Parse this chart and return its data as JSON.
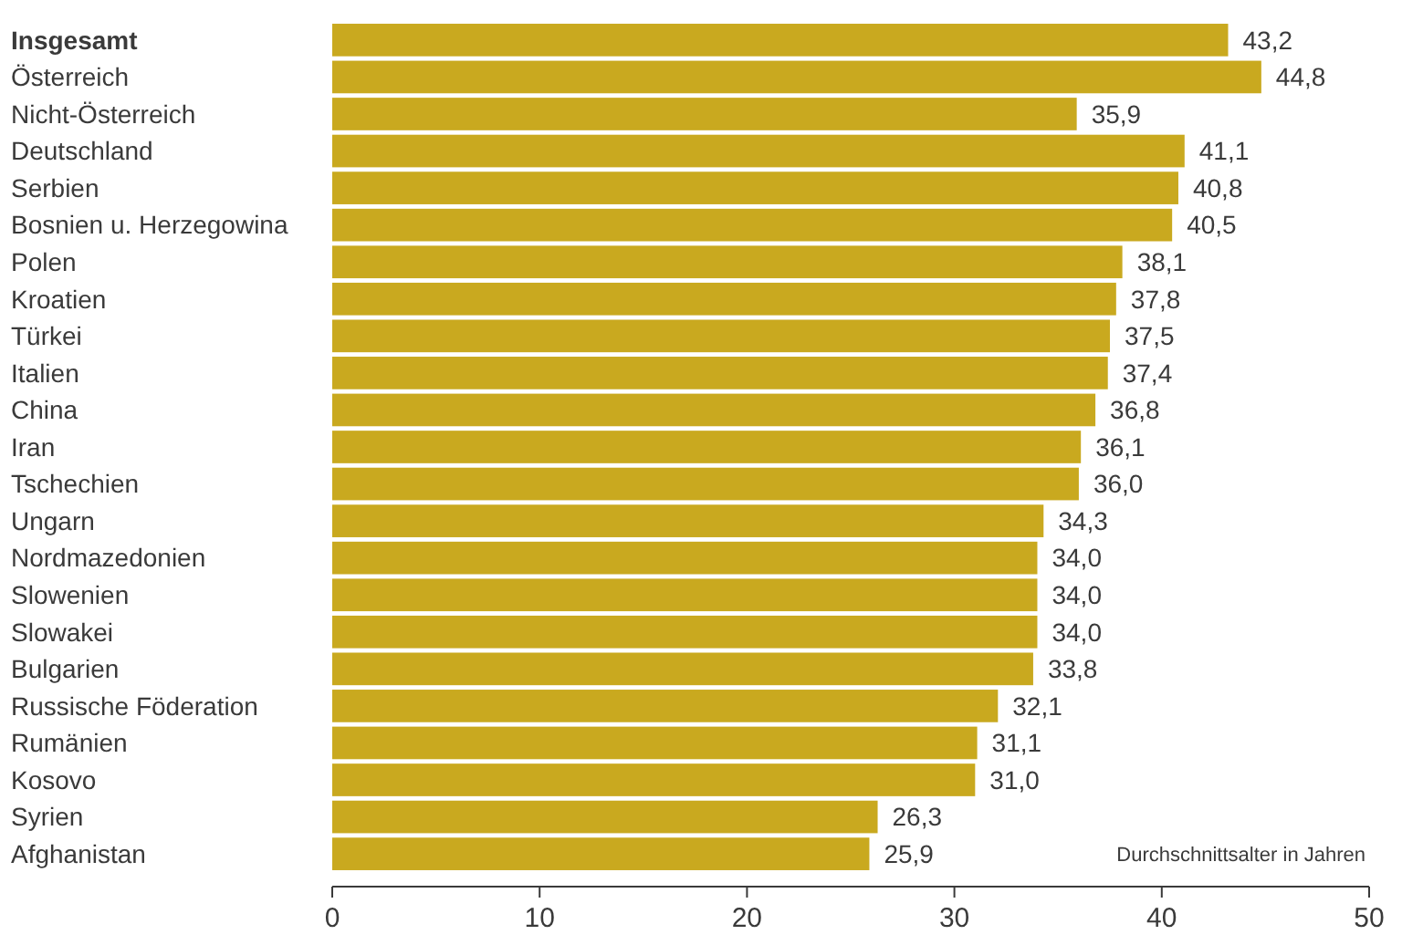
{
  "chart_data": {
    "type": "bar",
    "orientation": "horizontal",
    "categories": [
      "Insgesamt",
      "Österreich",
      "Nicht-Österreich",
      "Deutschland",
      "Serbien",
      "Bosnien u. Herzegowina",
      "Polen",
      "Kroatien",
      "Türkei",
      "Italien",
      "China",
      "Iran",
      "Tschechien",
      "Ungarn",
      "Nordmazedonien",
      "Slowenien",
      "Slowakei",
      "Bulgarien",
      "Russische Föderation",
      "Rumänien",
      "Kosovo",
      "Syrien",
      "Afghanistan"
    ],
    "values": [
      43.2,
      44.8,
      35.9,
      41.1,
      40.8,
      40.5,
      38.1,
      37.8,
      37.5,
      37.4,
      36.8,
      36.1,
      36.0,
      34.3,
      34.0,
      34.0,
      34.0,
      33.8,
      32.1,
      31.1,
      31.0,
      26.3,
      25.9
    ],
    "value_labels": [
      "43,2",
      "44,8",
      "35,9",
      "41,1",
      "40,8",
      "40,5",
      "38,1",
      "37,8",
      "37,5",
      "37,4",
      "36,8",
      "36,1",
      "36,0",
      "34,3",
      "34,0",
      "34,0",
      "34,0",
      "33,8",
      "32,1",
      "31,1",
      "31,0",
      "26,3",
      "25,9"
    ],
    "color": "#c9a91f",
    "xlim": [
      0,
      50
    ],
    "xticks": [
      0,
      10,
      20,
      30,
      40,
      50
    ],
    "grid": false,
    "annotations": [
      "Durchschnittsalter in Jahren"
    ]
  }
}
